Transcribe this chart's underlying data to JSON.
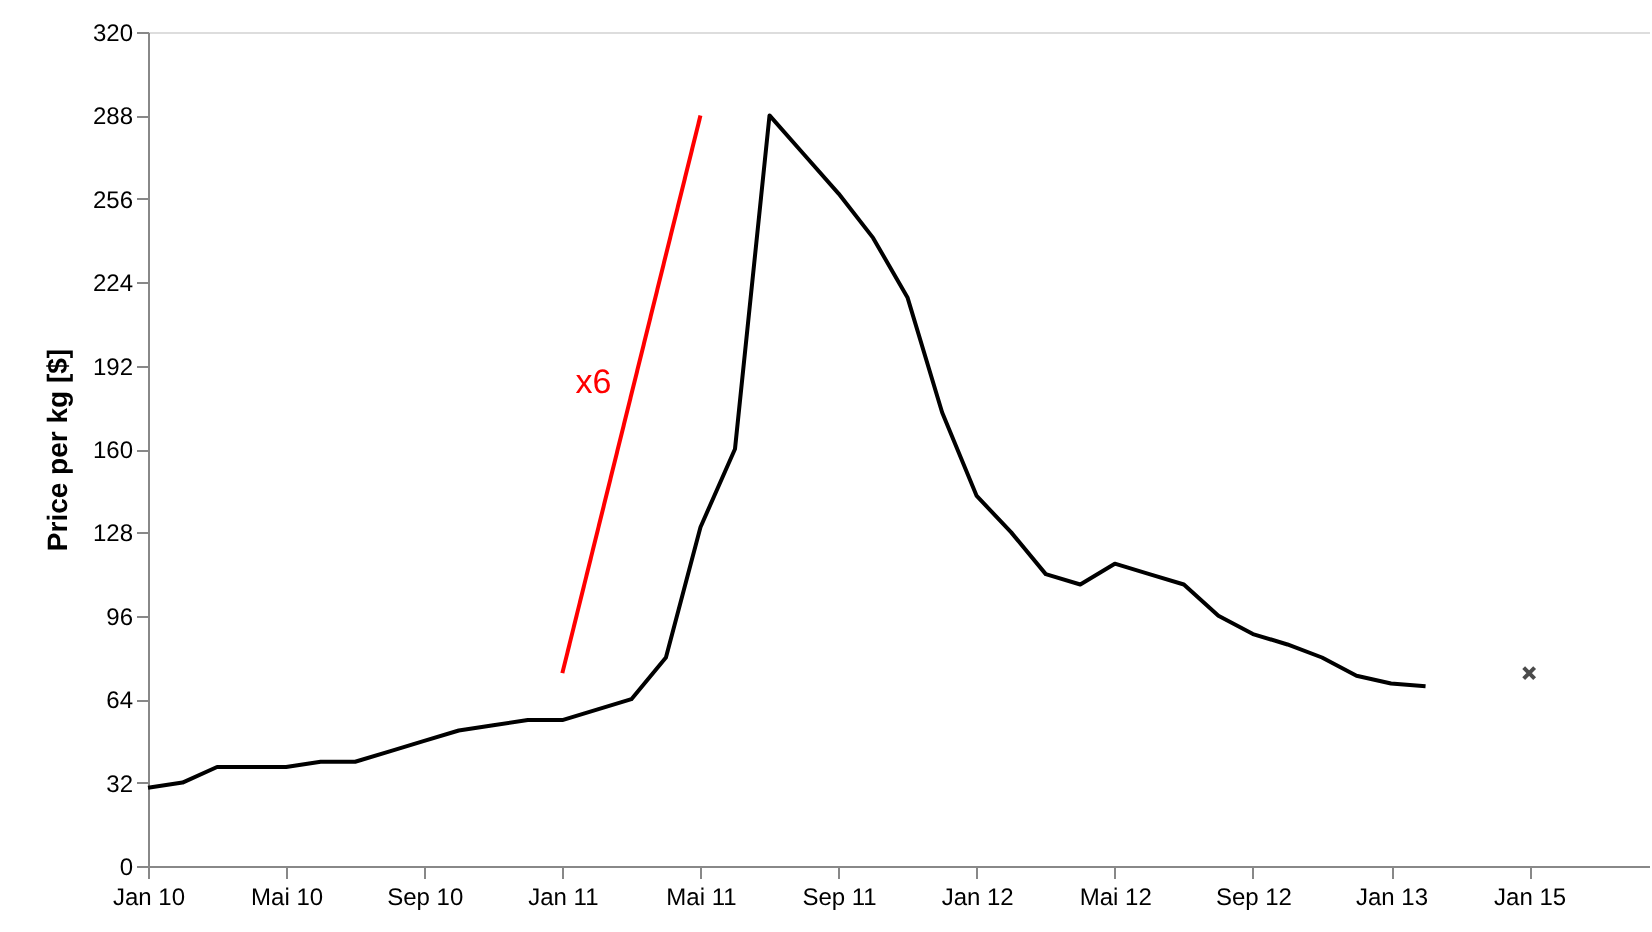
{
  "chart_data": {
    "type": "line",
    "ylabel": "Price per kg [$]",
    "categories": [
      "Jan 10",
      null,
      null,
      null,
      "Mai 10",
      null,
      null,
      null,
      "Sep 10",
      null,
      null,
      null,
      "Jan 11",
      null,
      null,
      null,
      "Mai 11",
      null,
      null,
      null,
      "Sep 11",
      null,
      null,
      null,
      "Jan 12",
      null,
      null,
      null,
      "Mai 12",
      null,
      null,
      null,
      "Sep 12",
      null,
      null,
      null,
      "Jan 13",
      null,
      null,
      null,
      "Jan 15",
      null,
      null,
      null
    ],
    "ylim": [
      0,
      320
    ],
    "yticks": [
      0,
      32,
      64,
      96,
      128,
      160,
      192,
      224,
      256,
      288,
      320
    ],
    "grid": false,
    "series": [
      {
        "color": "#000000",
        "values": [
          30,
          32,
          38,
          38,
          38,
          40,
          40,
          44,
          48,
          52,
          54,
          56,
          56,
          60,
          64,
          80,
          130,
          160,
          288,
          273,
          258,
          241,
          218,
          174,
          142,
          128,
          112,
          108,
          116,
          112,
          108,
          96,
          89,
          85,
          80,
          73,
          70,
          69,
          null,
          null,
          null,
          null,
          null,
          null
        ]
      },
      {
        "color": "#ff0000",
        "values": [
          null,
          null,
          null,
          null,
          null,
          null,
          null,
          null,
          null,
          null,
          null,
          null,
          74,
          null,
          null,
          null,
          288,
          null,
          null,
          null,
          null,
          null,
          null,
          null,
          null,
          null,
          null,
          null,
          null,
          null,
          null,
          null,
          null,
          null,
          null,
          null,
          null,
          null,
          null,
          null,
          null,
          null,
          null,
          null
        ]
      },
      {
        "type": "scatter",
        "marker": "cross",
        "color": "#000000",
        "values": [
          null,
          null,
          null,
          null,
          null,
          null,
          null,
          null,
          null,
          null,
          null,
          null,
          null,
          null,
          null,
          null,
          null,
          null,
          null,
          null,
          null,
          null,
          null,
          null,
          null,
          null,
          null,
          null,
          null,
          null,
          null,
          null,
          null,
          null,
          null,
          null,
          null,
          null,
          null,
          null,
          74,
          null,
          null,
          null
        ]
      }
    ],
    "annotations": [
      "x6"
    ]
  }
}
